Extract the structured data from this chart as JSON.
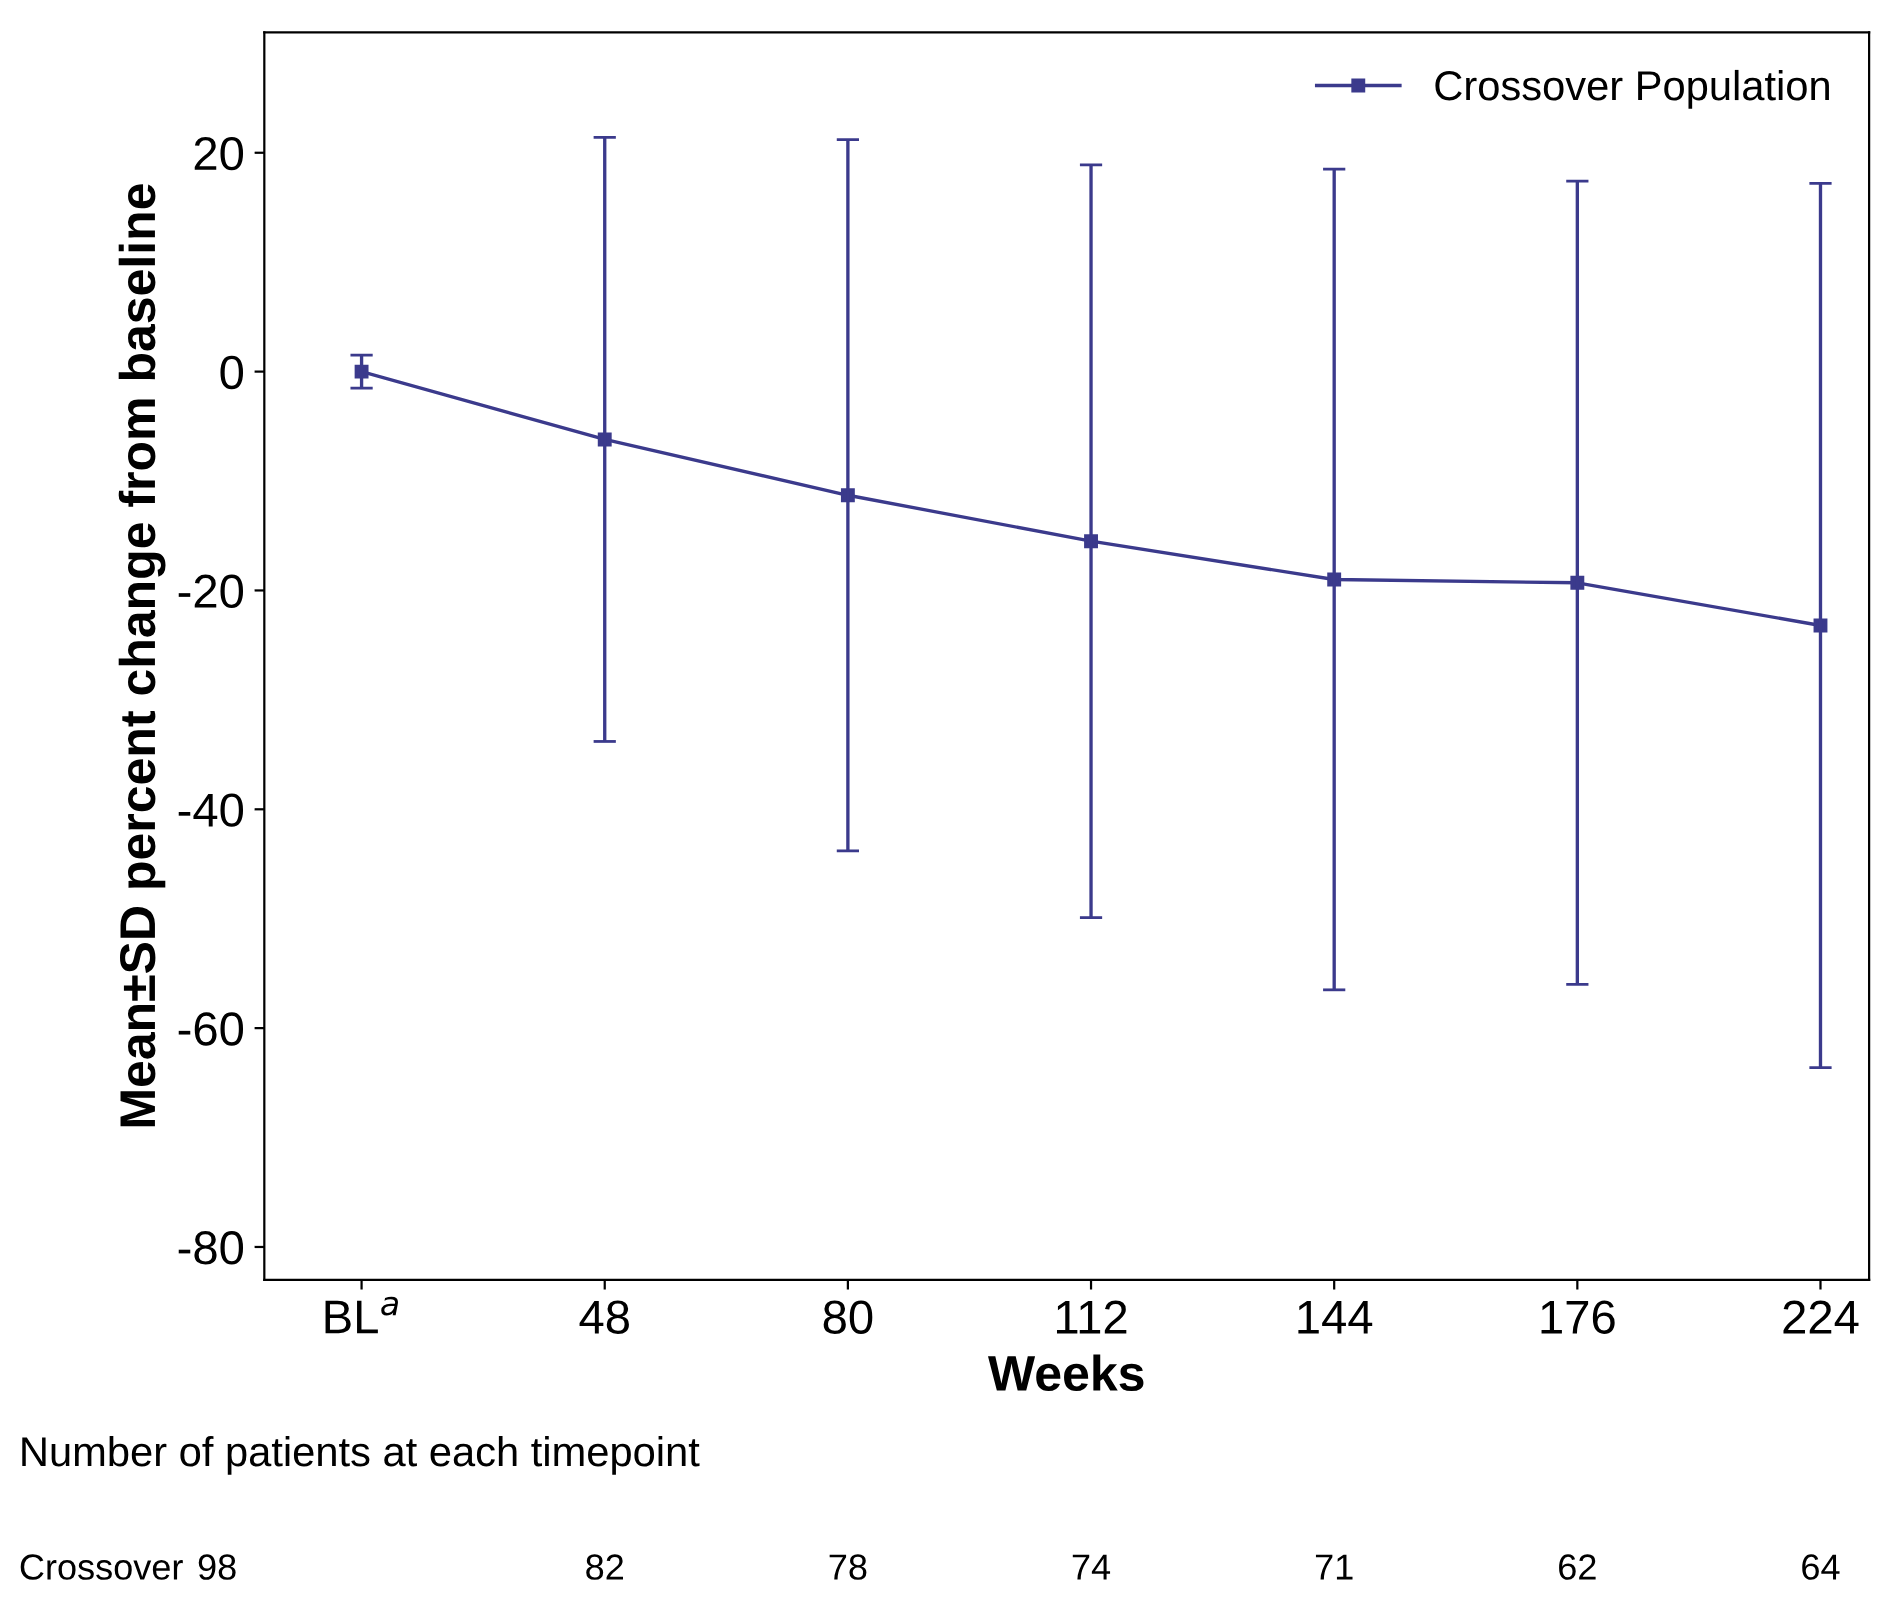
{
  "chart_data": {
    "type": "line",
    "xlabel": "Weeks",
    "ylabel": "Mean±SD percent change from baseline",
    "categories": [
      "BL$^{a}$",
      "48",
      "80",
      "112",
      "144",
      "176",
      "224"
    ],
    "series": [
      {
        "name": "Crossover Population",
        "color": "#3b3a8c",
        "values": [
          0,
          -6.2,
          -11.3,
          -15.5,
          -19,
          -19.3,
          -23.2
        ],
        "errors": [
          1.5,
          27.6,
          32.5,
          34.4,
          37.5,
          36.7,
          40.4
        ]
      }
    ],
    "ylim": [
      -83,
      31
    ],
    "yticks": [
      20,
      0,
      -20,
      -40,
      -60,
      -80
    ],
    "marker": "square",
    "line_style": "solid",
    "legend": "top right",
    "grid": false,
    "annotations": [
      "Number of patients at each timepoint",
      "Crossover",
      "98",
      "82",
      "78",
      "74",
      "71",
      "62",
      "64"
    ]
  }
}
